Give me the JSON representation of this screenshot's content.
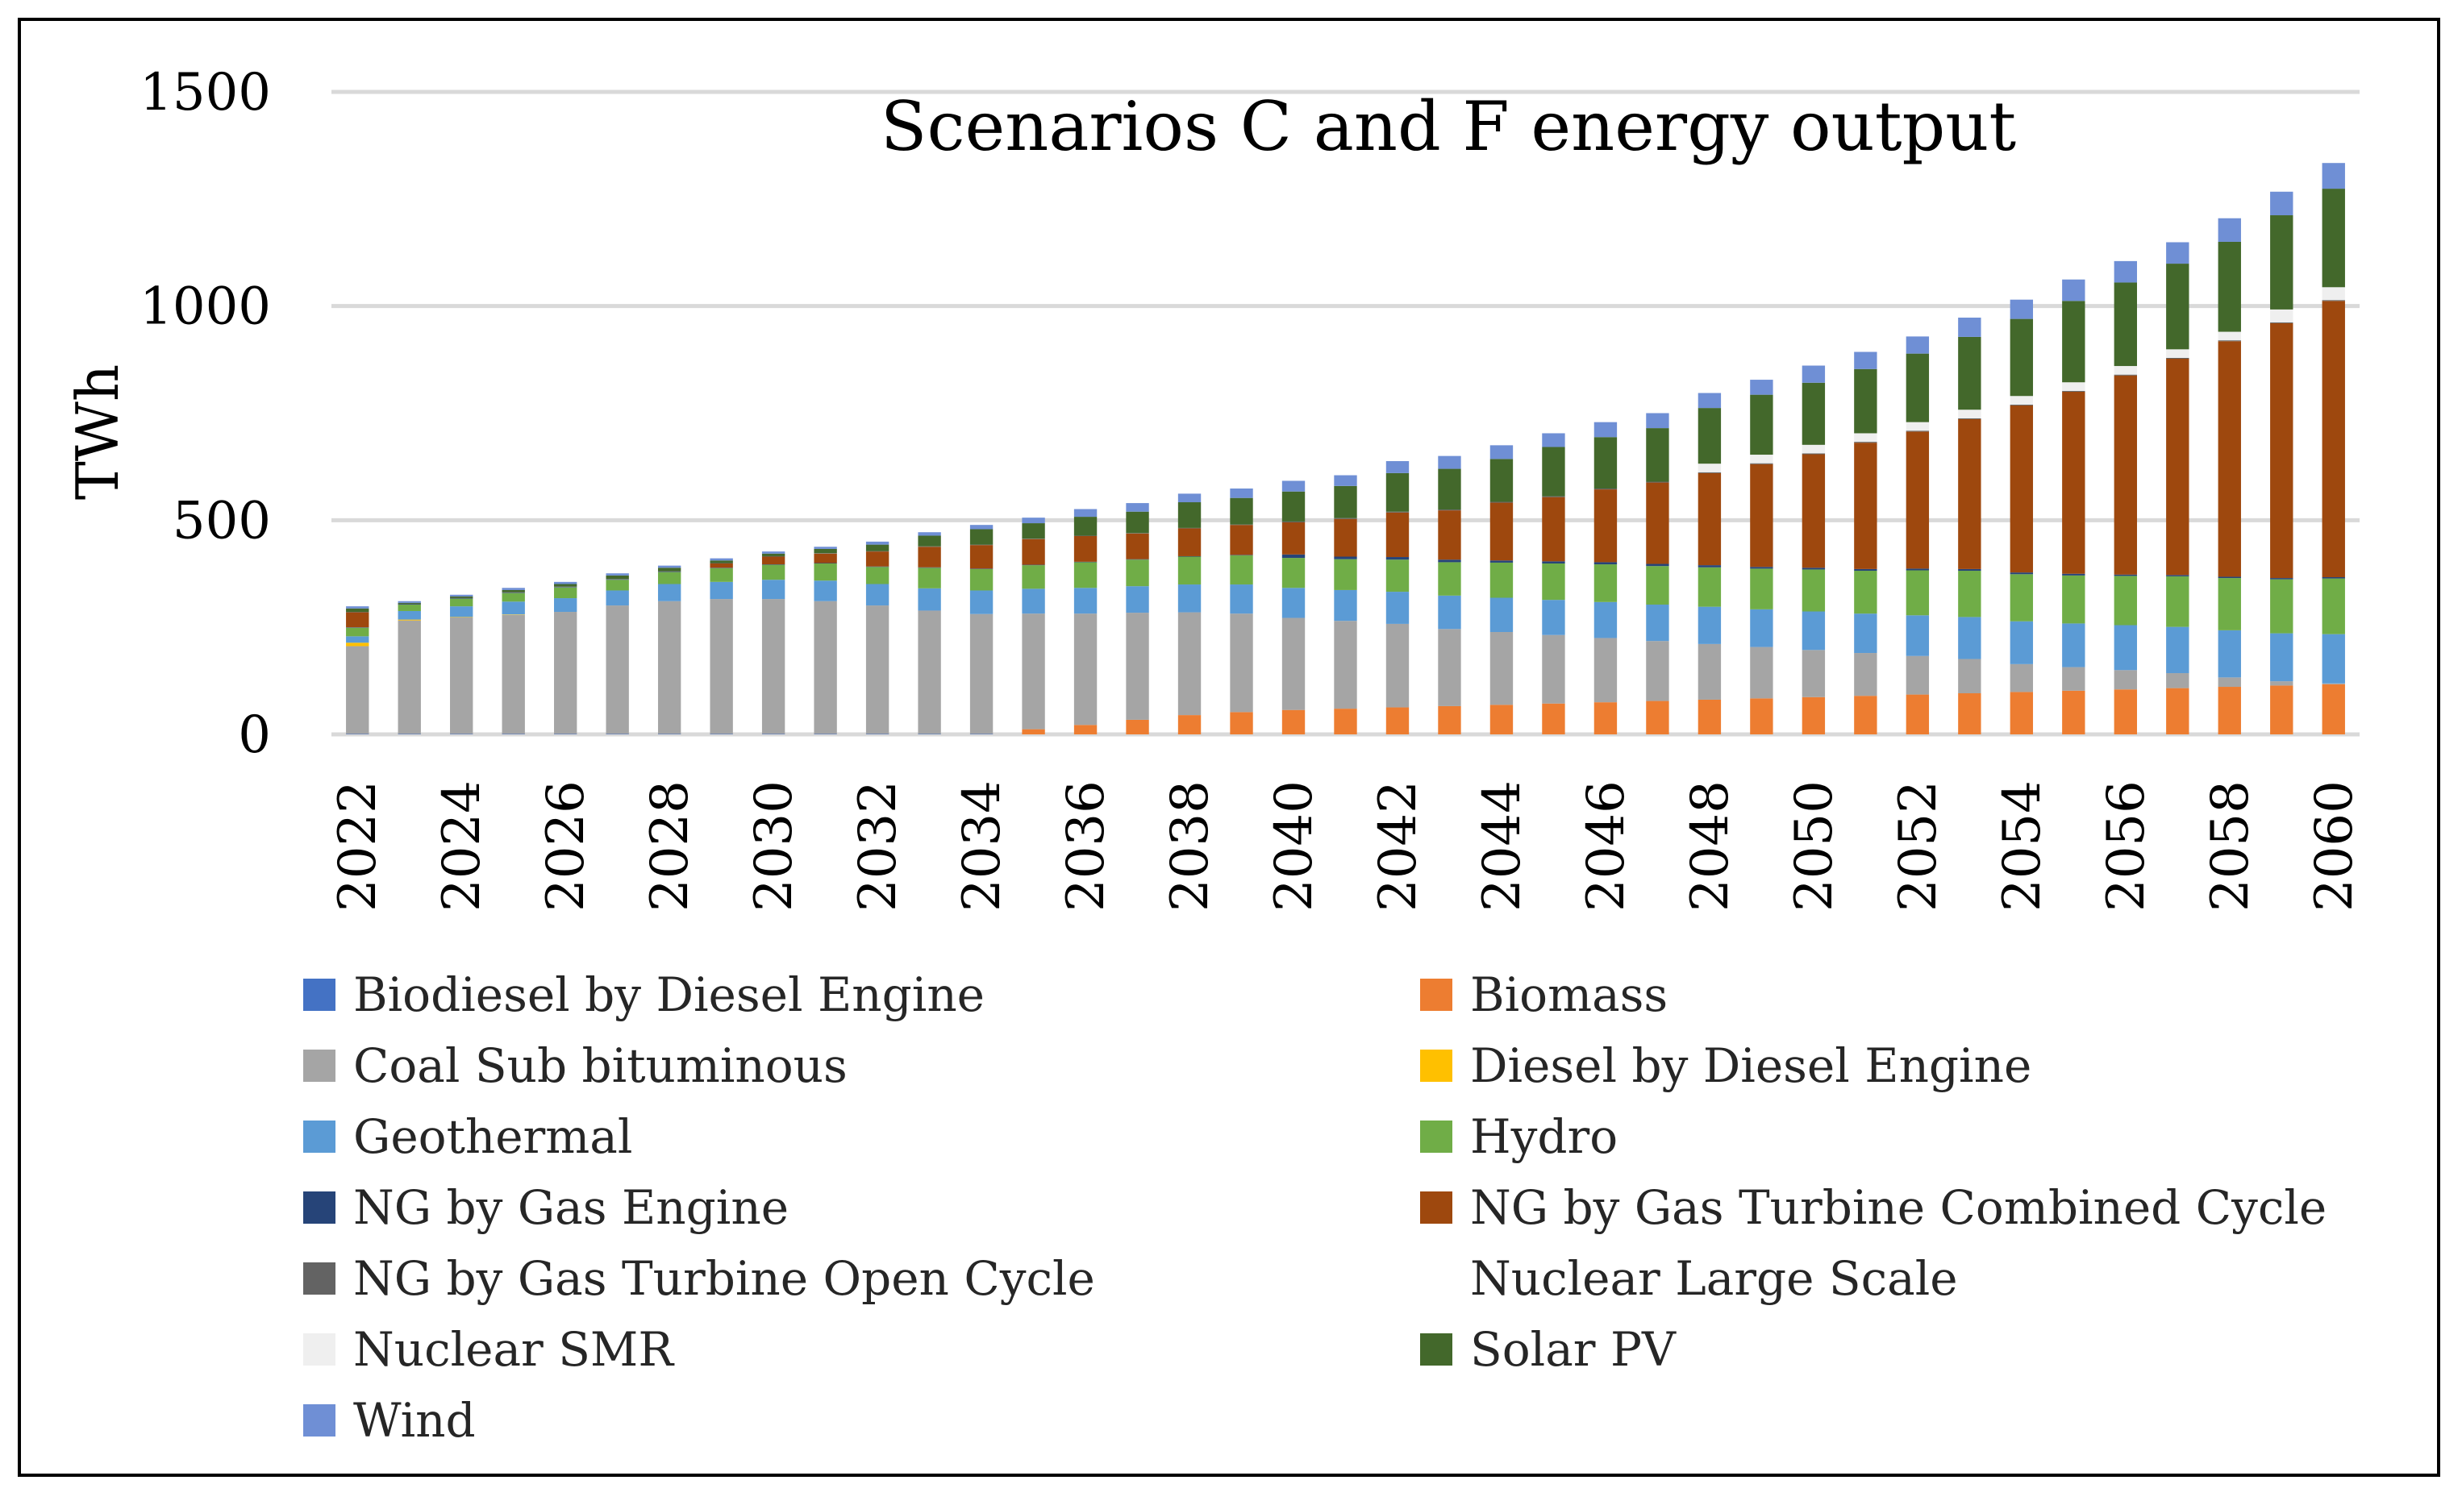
{
  "chart_data": {
    "type": "bar",
    "stacked": true,
    "title": "Scenarios C and F energy output",
    "xlabel": "",
    "ylabel": "TWh",
    "ylim": [
      0,
      1500
    ],
    "yticks": [
      0,
      500,
      1000,
      1500
    ],
    "grid": true,
    "legend_position": "bottom",
    "categories": [
      "2022",
      "2023",
      "2024",
      "2025",
      "2026",
      "2027",
      "2028",
      "2029",
      "2030",
      "2031",
      "2032",
      "2033",
      "2034",
      "2035",
      "2036",
      "2037",
      "2038",
      "2039",
      "2040",
      "2041",
      "2042",
      "2043",
      "2044",
      "2045",
      "2046",
      "2047",
      "2048",
      "2049",
      "2050",
      "2051",
      "2052",
      "2053",
      "2054",
      "2055",
      "2056",
      "2057",
      "2058",
      "2059",
      "2060"
    ],
    "xtick_labels": [
      "2022",
      "2024",
      "2026",
      "2028",
      "2030",
      "2032",
      "2034",
      "2036",
      "2038",
      "2040",
      "2042",
      "2044",
      "2046",
      "2048",
      "2050",
      "2052",
      "2054",
      "2056",
      "2058",
      "2060"
    ],
    "series": [
      {
        "name": "Biodiesel by Diesel Engine",
        "color": "#4472C4",
        "values": [
          1,
          1,
          1,
          1,
          1,
          1,
          1,
          1,
          1,
          1,
          1,
          1,
          1,
          0,
          0,
          0,
          0,
          0,
          0,
          0,
          0,
          0,
          0,
          0,
          0,
          0,
          0,
          0,
          0,
          0,
          0,
          0,
          0,
          0,
          0,
          0,
          0,
          0,
          0
        ]
      },
      {
        "name": "Biomass",
        "color": "#ED7D31",
        "values": [
          0,
          0,
          0,
          0,
          0,
          0,
          0,
          0,
          0,
          0,
          0,
          0,
          0,
          12,
          22,
          34,
          45,
          52,
          57,
          60,
          63,
          66,
          69,
          72,
          75,
          78,
          81,
          84,
          87,
          90,
          93,
          96,
          99,
          102,
          105,
          108,
          111,
          114,
          117
        ]
      },
      {
        "name": "Coal Sub bituminous",
        "color": "#A5A5A5",
        "values": [
          205,
          265,
          272,
          278,
          285,
          300,
          310,
          315,
          315,
          310,
          300,
          288,
          280,
          270,
          260,
          250,
          240,
          230,
          215,
          205,
          195,
          180,
          170,
          160,
          150,
          140,
          130,
          120,
          110,
          100,
          90,
          80,
          65,
          55,
          45,
          35,
          22,
          10,
          2
        ]
      },
      {
        "name": "Diesel by Diesel Engine",
        "color": "#FFC000",
        "values": [
          8,
          2,
          1,
          1,
          0,
          0,
          0,
          0,
          0,
          0,
          0,
          0,
          0,
          0,
          0,
          0,
          0,
          0,
          0,
          0,
          0,
          0,
          0,
          0,
          0,
          0,
          0,
          0,
          0,
          0,
          0,
          0,
          0,
          0,
          0,
          0,
          0,
          0,
          0
        ]
      },
      {
        "name": "Geothermal",
        "color": "#5B9BD5",
        "values": [
          15,
          20,
          25,
          30,
          32,
          35,
          40,
          40,
          45,
          48,
          50,
          52,
          55,
          58,
          60,
          62,
          65,
          68,
          70,
          72,
          75,
          78,
          80,
          82,
          84,
          85,
          87,
          88,
          90,
          92,
          95,
          98,
          100,
          102,
          105,
          108,
          110,
          112,
          115
        ]
      },
      {
        "name": "Hydro",
        "color": "#70AD47",
        "values": [
          20,
          15,
          18,
          20,
          25,
          25,
          28,
          32,
          35,
          40,
          40,
          48,
          50,
          55,
          60,
          62,
          65,
          68,
          70,
          72,
          75,
          78,
          82,
          85,
          88,
          90,
          92,
          95,
          98,
          100,
          105,
          108,
          110,
          112,
          115,
          118,
          122,
          126,
          130
        ]
      },
      {
        "name": "NG by Gas Engine",
        "color": "#264478",
        "values": [
          1,
          1,
          1,
          1,
          1,
          1,
          1,
          1,
          1,
          1,
          1,
          1,
          1,
          1,
          1,
          1,
          1,
          1,
          8,
          6,
          6,
          6,
          5,
          5,
          5,
          5,
          5,
          4,
          4,
          4,
          4,
          4,
          4,
          4,
          3,
          3,
          3,
          3,
          3
        ]
      },
      {
        "name": "NG by Gas Turbine Combined Cycle",
        "color": "#9E480E",
        "values": [
          35,
          0,
          0,
          0,
          0,
          0,
          0,
          10,
          18,
          22,
          35,
          48,
          55,
          60,
          60,
          60,
          65,
          70,
          75,
          88,
          104,
          115,
          135,
          150,
          170,
          190,
          215,
          240,
          265,
          295,
          320,
          350,
          390,
          425,
          465,
          505,
          550,
          595,
          645
        ]
      },
      {
        "name": "NG by Gas Turbine Open Cycle",
        "color": "#636363",
        "values": [
          1,
          1,
          1,
          1,
          1,
          1,
          1,
          1,
          1,
          1,
          1,
          1,
          1,
          1,
          1,
          1,
          1,
          1,
          2,
          2,
          2,
          2,
          2,
          2,
          2,
          2,
          2,
          2,
          2,
          2,
          2,
          2,
          2,
          2,
          2,
          2,
          2,
          2,
          2
        ]
      },
      {
        "name": "Nuclear Large Scale",
        "color": "#FFFFFF",
        "values": [
          0,
          0,
          0,
          0,
          0,
          0,
          0,
          0,
          0,
          0,
          0,
          0,
          0,
          0,
          0,
          0,
          0,
          0,
          0,
          0,
          0,
          0,
          0,
          0,
          0,
          0,
          0,
          0,
          0,
          0,
          0,
          0,
          0,
          0,
          0,
          0,
          0,
          0,
          0
        ]
      },
      {
        "name": "Nuclear SMR",
        "color": "#EFEFEF",
        "values": [
          0,
          0,
          0,
          0,
          0,
          0,
          0,
          0,
          0,
          0,
          0,
          0,
          0,
          0,
          0,
          0,
          0,
          0,
          0,
          0,
          0,
          0,
          0,
          0,
          0,
          0,
          20,
          20,
          20,
          20,
          20,
          20,
          20,
          20,
          20,
          20,
          20,
          30,
          30
        ]
      },
      {
        "name": "Solar PV",
        "color": "#43682B",
        "values": [
          8,
          2,
          3,
          5,
          6,
          8,
          8,
          6,
          6,
          10,
          15,
          25,
          36,
          36,
          44,
          50,
          60,
          62,
          70,
          75,
          90,
          95,
          100,
          115,
          120,
          125,
          130,
          140,
          145,
          150,
          160,
          170,
          180,
          190,
          195,
          200,
          210,
          220,
          230
        ]
      },
      {
        "name": "Wind",
        "color": "#6F8FD5",
        "values": [
          5,
          4,
          4,
          5,
          5,
          5,
          5,
          5,
          5,
          5,
          7,
          8,
          10,
          13,
          18,
          20,
          20,
          22,
          25,
          25,
          28,
          30,
          32,
          32,
          35,
          35,
          35,
          35,
          40,
          40,
          40,
          45,
          45,
          50,
          50,
          50,
          55,
          55,
          60
        ]
      }
    ]
  }
}
